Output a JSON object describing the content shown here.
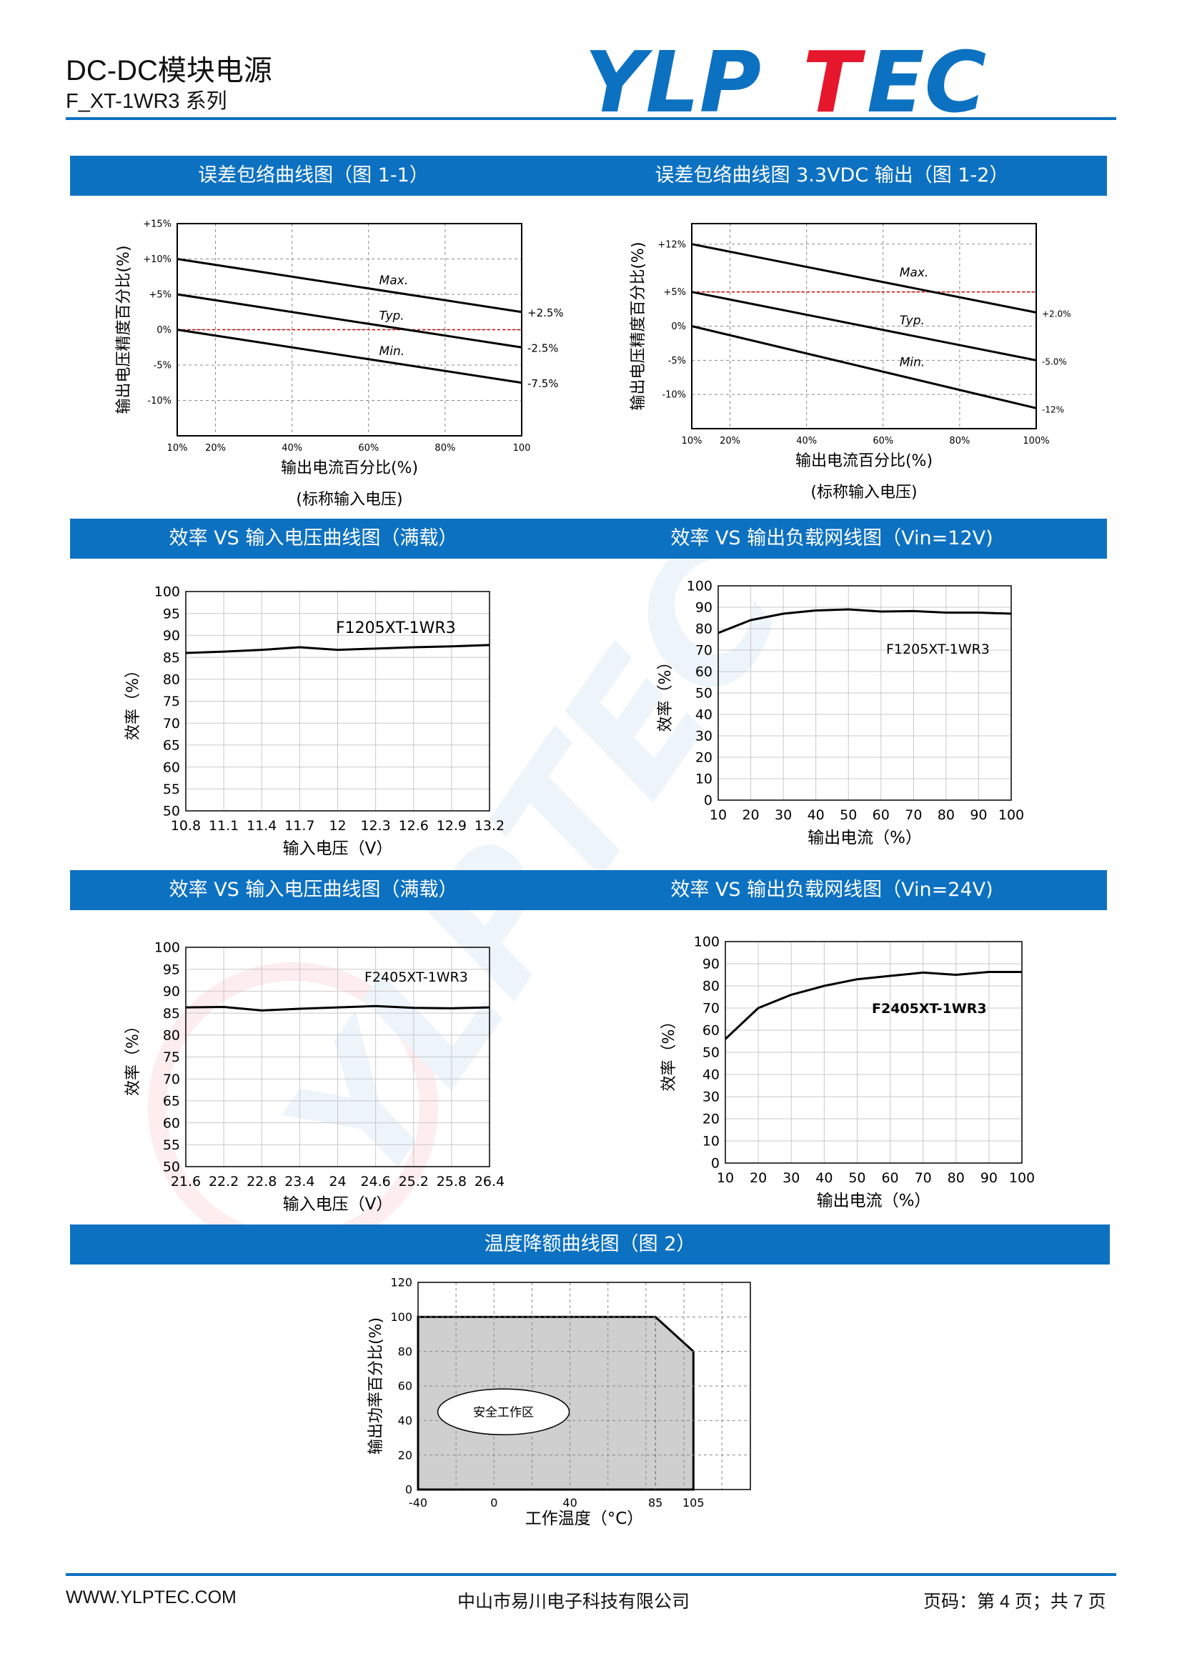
{
  "header": {
    "title": "DC-DC模块电源",
    "subtitle": "F_XT-1WR3 系列",
    "logo_text": "YLPTEC",
    "brand_blue": "#0d71c2",
    "brand_red": "#e6172d"
  },
  "sections": {
    "s1": "误差包络曲线图（图 1-1）",
    "s2": "误差包络曲线图 3.3VDC 输出（图 1-2）",
    "s3": "效率 VS 输入电压曲线图（满载）",
    "s4": "效率 VS 输出负载网线图（Vin=12V)",
    "s5": "效率 VS 输入电压曲线图（满载）",
    "s6": "效率 VS 输出负载网线图（Vin=24V)",
    "s7": "温度降额曲线图（图 2）"
  },
  "chart_data": [
    {
      "id": "fig1-1",
      "type": "line",
      "ylabel": "输出电压精度百分比(%)",
      "xlabel": "输出电流百分比(%)",
      "caption": "(标称输入电压)",
      "x_ticks": [
        "10%",
        "20%",
        "40%",
        "60%",
        "80%",
        "100"
      ],
      "y_ticks": [
        "+15%",
        "+10%",
        "+5%",
        "0%",
        "-5%",
        "-10%"
      ],
      "series": [
        {
          "name": "Max.",
          "x": [
            10,
            100
          ],
          "y": [
            10,
            2.5
          ]
        },
        {
          "name": "Typ.",
          "x": [
            10,
            100
          ],
          "y": [
            5,
            -2.5
          ]
        },
        {
          "name": "Min.",
          "x": [
            10,
            100
          ],
          "y": [
            0,
            -7.5
          ]
        }
      ],
      "end_labels": [
        "+2.5%",
        "-2.5%",
        "-7.5%"
      ],
      "ylim": [
        -15,
        15
      ],
      "xlim": [
        10,
        100
      ],
      "grid": true
    },
    {
      "id": "fig1-2",
      "type": "line",
      "ylabel": "输出电压精度百分比(%)",
      "xlabel": "输出电流百分比(%)",
      "caption": "(标称输入电压)",
      "x_ticks": [
        "10%",
        "20%",
        "40%",
        "60%",
        "80%",
        "100%"
      ],
      "y_ticks": [
        "+12%",
        "+5%",
        "0%",
        "-5%",
        "-10%"
      ],
      "series": [
        {
          "name": "Max.",
          "x": [
            10,
            100
          ],
          "y": [
            12,
            2
          ]
        },
        {
          "name": "Typ.",
          "x": [
            10,
            100
          ],
          "y": [
            5,
            -5
          ]
        },
        {
          "name": "Min.",
          "x": [
            10,
            100
          ],
          "y": [
            0,
            -12
          ]
        }
      ],
      "end_labels": [
        "+2.0%",
        "-5.0%",
        "-12%"
      ],
      "ylim": [
        -15,
        15
      ],
      "xlim": [
        10,
        100
      ],
      "grid": true
    },
    {
      "id": "eff-vin-12",
      "type": "line",
      "ylabel": "效率（%）",
      "xlabel": "输入电压（V）",
      "model": "F1205XT-1WR3",
      "x_ticks": [
        "10.8",
        "11.1",
        "11.4",
        "11.7",
        "12",
        "12.3",
        "12.6",
        "12.9",
        "13.2"
      ],
      "y_ticks": [
        "100",
        "95",
        "90",
        "85",
        "80",
        "75",
        "70",
        "65",
        "60",
        "55",
        "50"
      ],
      "series": [
        {
          "name": "F1205XT-1WR3",
          "x": [
            10.8,
            11.1,
            11.4,
            11.7,
            12,
            12.3,
            12.6,
            12.9,
            13.2
          ],
          "y": [
            86,
            86.3,
            86.7,
            87.3,
            86.7,
            87,
            87.3,
            87.5,
            87.8
          ]
        }
      ],
      "ylim": [
        50,
        100
      ],
      "xlim": [
        10.8,
        13.2
      ],
      "grid": true
    },
    {
      "id": "eff-load-12",
      "type": "line",
      "ylabel": "效率（%）",
      "xlabel": "输出电流（%）",
      "model": "F1205XT-1WR3",
      "x_ticks": [
        "10",
        "20",
        "30",
        "40",
        "50",
        "60",
        "70",
        "80",
        "90",
        "100"
      ],
      "y_ticks": [
        "100",
        "90",
        "80",
        "70",
        "60",
        "50",
        "40",
        "30",
        "20",
        "10",
        "0"
      ],
      "series": [
        {
          "name": "F1205XT-1WR3",
          "x": [
            10,
            20,
            30,
            40,
            50,
            60,
            70,
            80,
            90,
            100
          ],
          "y": [
            78,
            84,
            87,
            88.5,
            89,
            88,
            88.2,
            87.5,
            87.5,
            87
          ]
        }
      ],
      "ylim": [
        0,
        100
      ],
      "xlim": [
        10,
        100
      ],
      "grid": true
    },
    {
      "id": "eff-vin-24",
      "type": "line",
      "ylabel": "效率（%）",
      "xlabel": "输入电压（V）",
      "model": "F2405XT-1WR3",
      "x_ticks": [
        "21.6",
        "22.2",
        "22.8",
        "23.4",
        "24",
        "24.6",
        "25.2",
        "25.8",
        "26.4"
      ],
      "y_ticks": [
        "100",
        "95",
        "90",
        "85",
        "80",
        "75",
        "70",
        "65",
        "60",
        "55",
        "50"
      ],
      "series": [
        {
          "name": "F2405XT-1WR3",
          "x": [
            21.6,
            22.2,
            22.8,
            23.4,
            24,
            24.6,
            25.2,
            25.8,
            26.4
          ],
          "y": [
            86.3,
            86.4,
            85.6,
            86,
            86.3,
            86.6,
            86.2,
            86.1,
            86.3
          ]
        }
      ],
      "ylim": [
        50,
        100
      ],
      "xlim": [
        21.6,
        26.4
      ],
      "grid": true
    },
    {
      "id": "eff-load-24",
      "type": "line",
      "ylabel": "效率（%）",
      "xlabel": "输出电流（%）",
      "model": "F2405XT-1WR3",
      "x_ticks": [
        "10",
        "20",
        "30",
        "40",
        "50",
        "60",
        "70",
        "80",
        "90",
        "100"
      ],
      "y_ticks": [
        "100",
        "90",
        "80",
        "70",
        "60",
        "50",
        "40",
        "30",
        "20",
        "10",
        "0"
      ],
      "series": [
        {
          "name": "F2405XT-1WR3",
          "x": [
            10,
            20,
            30,
            40,
            50,
            60,
            70,
            80,
            90,
            100
          ],
          "y": [
            56,
            70,
            76,
            80,
            83,
            84.5,
            86,
            85,
            86.3,
            86.3
          ]
        }
      ],
      "ylim": [
        0,
        100
      ],
      "xlim": [
        10,
        100
      ],
      "grid": true
    },
    {
      "id": "fig2",
      "type": "area",
      "ylabel": "输出功率百分比(%)",
      "xlabel": "工作温度（°C）",
      "region_label": "安全工作区",
      "x_ticks": [
        "-40",
        "0",
        "40",
        "85",
        "105"
      ],
      "y_ticks": [
        "120",
        "100",
        "80",
        "60",
        "40",
        "20",
        "0"
      ],
      "series": [
        {
          "name": "安全工作区",
          "x": [
            -40,
            85,
            105,
            105
          ],
          "y": [
            100,
            100,
            80,
            0
          ]
        }
      ],
      "ylim": [
        0,
        120
      ],
      "xlim": [
        -40,
        135
      ],
      "grid": true
    }
  ],
  "footer": {
    "website": "WWW.YLPTEC.COM",
    "company": "中山市易川电子科技有限公司",
    "page": "页码：第 4 页；共 7 页"
  }
}
